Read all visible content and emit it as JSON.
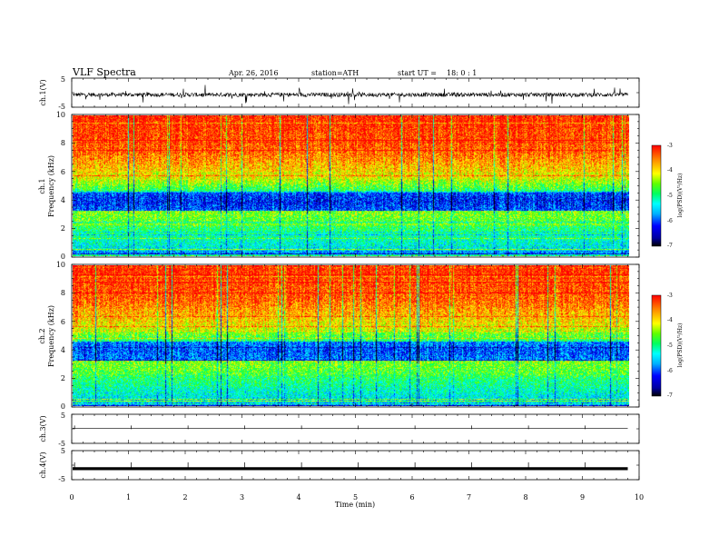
{
  "header": {
    "title": "VLF Spectra",
    "date": "Apr. 26, 2016",
    "station": "station=ATH",
    "start": "start UT =",
    "start_time": "18: 0 : 1"
  },
  "chart_data": [
    {
      "type": "line",
      "panel": "ch1-waveform",
      "ylabel": "ch.1(V)",
      "ylim": [
        -5,
        5
      ],
      "yticks": [
        "5",
        "-5"
      ],
      "xlim": [
        0,
        10
      ],
      "note": "noisy waveform around -0.7 V with sferic spikes"
    },
    {
      "type": "heatmap",
      "panel": "ch1-spectrogram",
      "ylabel_top": "ch.1",
      "ylabel": "Frequency (kHz)",
      "ylim": [
        0,
        10
      ],
      "yticks": [
        "0",
        "2",
        "4",
        "6",
        "8",
        "10"
      ],
      "xlim": [
        0,
        9.8
      ],
      "colorbar": {
        "label": "log(PSD)(V²/Hz)",
        "range": [
          -7,
          -3
        ],
        "ticks": [
          "-3",
          "-4",
          "-5",
          "-6",
          "-7"
        ]
      }
    },
    {
      "type": "heatmap",
      "panel": "ch2-spectrogram",
      "ylabel_top": "ch.2",
      "ylabel": "Frequency (kHz)",
      "ylim": [
        0,
        10
      ],
      "yticks": [
        "0",
        "2",
        "4",
        "6",
        "8",
        "10"
      ],
      "xlim": [
        0,
        9.8
      ],
      "colorbar": {
        "label": "log(PSD)(V²/Hz)",
        "range": [
          -7,
          -3
        ],
        "ticks": [
          "-3",
          "-4",
          "-5",
          "-6",
          "-7"
        ]
      }
    },
    {
      "type": "line",
      "panel": "ch3-waveform",
      "ylabel": "ch.3(V)",
      "ylim": [
        -5,
        5
      ],
      "yticks": [
        "5",
        "-5"
      ],
      "value": 0.2
    },
    {
      "type": "line",
      "panel": "ch4-waveform",
      "ylabel": "ch.4(V)",
      "ylim": [
        -5,
        5
      ],
      "yticks": [
        "5",
        "-5"
      ],
      "value": -1.2
    }
  ],
  "x_axis": {
    "label": "Time (min)",
    "ticks": [
      "0",
      "1",
      "2",
      "3",
      "4",
      "5",
      "6",
      "7",
      "8",
      "9",
      "10"
    ],
    "range": [
      0,
      10
    ]
  }
}
